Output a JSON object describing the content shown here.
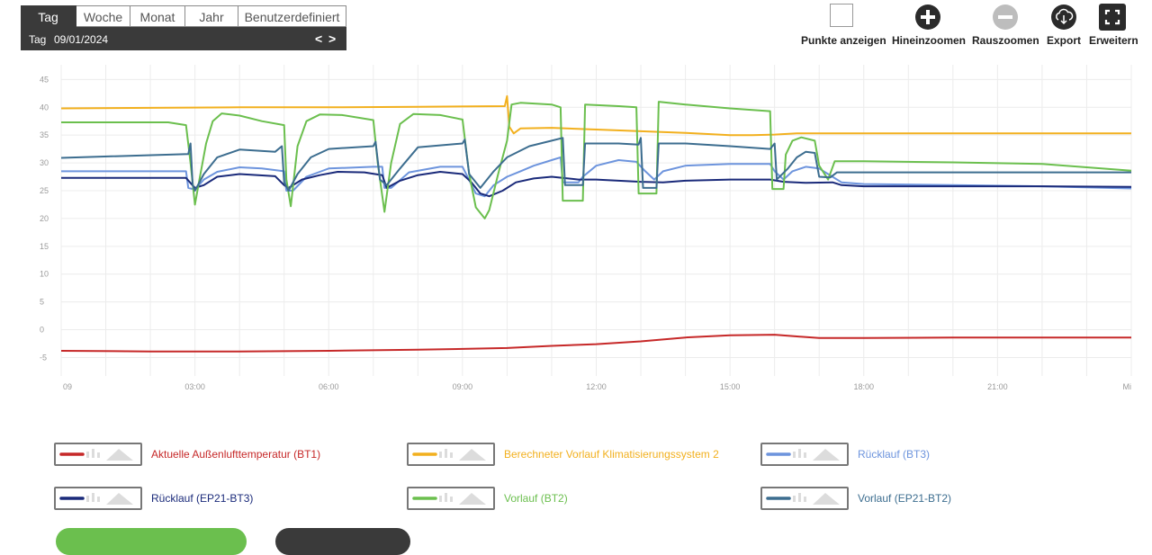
{
  "period_tabs": [
    "Tag",
    "Woche",
    "Monat",
    "Jahr",
    "Benutzerdefiniert"
  ],
  "active_tab": "Tag",
  "date_prefix": "Tag",
  "date_value": "09/01/2024",
  "nav": {
    "prev": "<",
    "next": ">"
  },
  "toolbar": {
    "show_points": "Punkte anzeigen",
    "zoom_in": "Hineinzoomen",
    "zoom_out": "Rauszoomen",
    "export": "Export",
    "expand": "Erweitern"
  },
  "colors": {
    "bt1": "#c62828",
    "calc": "#f2b01e",
    "bt3": "#6d94dd",
    "ep21bt3": "#1a2a7a",
    "bt2": "#6bbf4e",
    "ep21bt2": "#3c6d8f",
    "grid": "#ececec"
  },
  "chart_data": {
    "type": "line",
    "ylim": [
      -8,
      47
    ],
    "y_ticks": [
      45,
      40,
      35,
      30,
      25,
      20,
      15,
      10,
      5,
      0,
      -5
    ],
    "x_range": [
      0,
      24
    ],
    "x_ticks": [
      {
        "h": 0,
        "label": "09"
      },
      {
        "h": 3,
        "label": "03:00"
      },
      {
        "h": 6,
        "label": "06:00"
      },
      {
        "h": 9,
        "label": "09:00"
      },
      {
        "h": 12,
        "label": "12:00"
      },
      {
        "h": 15,
        "label": "15:00"
      },
      {
        "h": 18,
        "label": "18:00"
      },
      {
        "h": 21,
        "label": "21:00"
      },
      {
        "h": 24,
        "label": "Mi"
      }
    ],
    "series": [
      {
        "key": "bt1",
        "name": "Aktuelle Außenlufttemperatur (BT1)",
        "points": [
          [
            0,
            -3.8
          ],
          [
            2,
            -3.9
          ],
          [
            4,
            -3.9
          ],
          [
            6,
            -3.8
          ],
          [
            8,
            -3.6
          ],
          [
            10,
            -3.3
          ],
          [
            11,
            -2.9
          ],
          [
            12,
            -2.6
          ],
          [
            13,
            -2.1
          ],
          [
            14,
            -1.4
          ],
          [
            15,
            -1.0
          ],
          [
            16,
            -0.9
          ],
          [
            16.5,
            -1.2
          ],
          [
            17,
            -1.5
          ],
          [
            18,
            -1.5
          ],
          [
            20,
            -1.4
          ],
          [
            22,
            -1.4
          ],
          [
            24,
            -1.4
          ]
        ]
      },
      {
        "key": "calc",
        "name": "Berechneter Vorlauf Klimatisierungssystem 2",
        "points": [
          [
            0,
            39.8
          ],
          [
            2,
            39.9
          ],
          [
            4,
            40.0
          ],
          [
            6,
            40.0
          ],
          [
            8,
            40.1
          ],
          [
            9.95,
            40.2
          ],
          [
            10,
            42
          ],
          [
            10.05,
            36.5
          ],
          [
            10.15,
            35.3
          ],
          [
            10.3,
            36.2
          ],
          [
            11,
            36.3
          ],
          [
            12,
            36.0
          ],
          [
            13,
            35.7
          ],
          [
            14,
            35.4
          ],
          [
            15,
            35.0
          ],
          [
            15.5,
            35.0
          ],
          [
            16,
            35.1
          ],
          [
            16.5,
            35.3
          ],
          [
            18,
            35.3
          ],
          [
            20,
            35.3
          ],
          [
            22,
            35.3
          ],
          [
            24,
            35.3
          ]
        ]
      },
      {
        "key": "bt3",
        "name": "Rücklauf (BT3)",
        "points": [
          [
            0,
            28.5
          ],
          [
            2.8,
            28.5
          ],
          [
            2.85,
            25.5
          ],
          [
            3.0,
            25.2
          ],
          [
            3.2,
            27.0
          ],
          [
            3.5,
            28.4
          ],
          [
            4,
            29.2
          ],
          [
            4.5,
            29.0
          ],
          [
            5.0,
            28.5
          ],
          [
            5.05,
            25.0
          ],
          [
            5.2,
            25.0
          ],
          [
            5.5,
            27.5
          ],
          [
            5.8,
            28.4
          ],
          [
            6,
            29.0
          ],
          [
            7,
            29.3
          ],
          [
            7.2,
            29.3
          ],
          [
            7.25,
            25.5
          ],
          [
            7.4,
            25.5
          ],
          [
            7.8,
            28.3
          ],
          [
            8.5,
            29.3
          ],
          [
            9.0,
            29.3
          ],
          [
            9.3,
            24.5
          ],
          [
            9.5,
            24.0
          ],
          [
            9.7,
            26.0
          ],
          [
            10,
            27.5
          ],
          [
            10.3,
            28.5
          ],
          [
            10.6,
            29.5
          ],
          [
            11,
            30.5
          ],
          [
            11.2,
            31.0
          ],
          [
            11.25,
            26.5
          ],
          [
            11.6,
            26.5
          ],
          [
            11.7,
            27.5
          ],
          [
            12,
            29.5
          ],
          [
            12.5,
            30.5
          ],
          [
            12.9,
            30.2
          ],
          [
            13.1,
            28.5
          ],
          [
            13.3,
            27.0
          ],
          [
            13.5,
            28.5
          ],
          [
            14,
            29.5
          ],
          [
            15,
            29.8
          ],
          [
            15.9,
            29.8
          ],
          [
            16.0,
            28.5
          ],
          [
            16.2,
            27.0
          ],
          [
            16.4,
            28.5
          ],
          [
            16.7,
            29.3
          ],
          [
            17,
            29.0
          ],
          [
            17.2,
            28.0
          ],
          [
            17.5,
            26.5
          ],
          [
            18,
            26.2
          ],
          [
            20,
            26.0
          ],
          [
            22,
            25.8
          ],
          [
            24,
            25.4
          ]
        ]
      },
      {
        "key": "ep21bt3",
        "name": "Rücklauf (EP21-BT3)",
        "points": [
          [
            0,
            27.3
          ],
          [
            2.8,
            27.3
          ],
          [
            3.0,
            25.5
          ],
          [
            3.2,
            26.0
          ],
          [
            3.5,
            27.5
          ],
          [
            4,
            28.0
          ],
          [
            4.8,
            27.6
          ],
          [
            5.0,
            26.0
          ],
          [
            5.1,
            25.5
          ],
          [
            5.4,
            27.0
          ],
          [
            5.8,
            27.8
          ],
          [
            6.2,
            28.4
          ],
          [
            6.8,
            28.3
          ],
          [
            7.2,
            27.8
          ],
          [
            7.3,
            25.5
          ],
          [
            7.6,
            26.8
          ],
          [
            8,
            27.8
          ],
          [
            8.5,
            28.4
          ],
          [
            9.0,
            28.0
          ],
          [
            9.2,
            26.5
          ],
          [
            9.4,
            24.5
          ],
          [
            9.6,
            24.0
          ],
          [
            9.9,
            25.0
          ],
          [
            10.2,
            26.5
          ],
          [
            10.6,
            27.2
          ],
          [
            11,
            27.5
          ],
          [
            11.6,
            27.0
          ],
          [
            12,
            27.0
          ],
          [
            12.5,
            26.8
          ],
          [
            13,
            26.6
          ],
          [
            13.5,
            26.5
          ],
          [
            14,
            26.8
          ],
          [
            15,
            27.0
          ],
          [
            15.9,
            27.0
          ],
          [
            16.2,
            26.6
          ],
          [
            16.7,
            26.4
          ],
          [
            17.3,
            26.5
          ],
          [
            17.5,
            26.0
          ],
          [
            18,
            25.8
          ],
          [
            20,
            25.8
          ],
          [
            22,
            25.8
          ],
          [
            24,
            25.7
          ]
        ]
      },
      {
        "key": "bt2",
        "name": "Vorlauf (BT2)",
        "points": [
          [
            0,
            37.3
          ],
          [
            2.4,
            37.3
          ],
          [
            2.8,
            36.8
          ],
          [
            2.9,
            30.0
          ],
          [
            3.0,
            22.5
          ],
          [
            3.1,
            27.0
          ],
          [
            3.25,
            33.5
          ],
          [
            3.4,
            37.5
          ],
          [
            3.6,
            38.9
          ],
          [
            4,
            38.5
          ],
          [
            4.5,
            37.5
          ],
          [
            5.0,
            36.8
          ],
          [
            5.05,
            27.0
          ],
          [
            5.15,
            22.2
          ],
          [
            5.3,
            33.0
          ],
          [
            5.5,
            37.5
          ],
          [
            5.8,
            38.7
          ],
          [
            6.3,
            38.6
          ],
          [
            7.0,
            37.7
          ],
          [
            7.1,
            30.0
          ],
          [
            7.25,
            21.2
          ],
          [
            7.4,
            30.0
          ],
          [
            7.6,
            37.0
          ],
          [
            7.9,
            38.8
          ],
          [
            8.5,
            38.6
          ],
          [
            9.0,
            37.8
          ],
          [
            9.15,
            28.0
          ],
          [
            9.3,
            22.0
          ],
          [
            9.5,
            20.0
          ],
          [
            9.6,
            21.5
          ],
          [
            9.8,
            28.0
          ],
          [
            10.0,
            34.0
          ],
          [
            10.1,
            40.5
          ],
          [
            10.3,
            40.8
          ],
          [
            11,
            40.5
          ],
          [
            11.2,
            40.0
          ],
          [
            11.25,
            23.2
          ],
          [
            11.7,
            23.2
          ],
          [
            11.75,
            40.5
          ],
          [
            12.5,
            40.2
          ],
          [
            12.9,
            40.0
          ],
          [
            12.95,
            24.5
          ],
          [
            13.35,
            24.5
          ],
          [
            13.4,
            41.0
          ],
          [
            14,
            40.5
          ],
          [
            15,
            39.8
          ],
          [
            15.9,
            39.3
          ],
          [
            15.95,
            25.3
          ],
          [
            16.2,
            25.3
          ],
          [
            16.25,
            31.5
          ],
          [
            16.4,
            34.0
          ],
          [
            16.6,
            34.6
          ],
          [
            16.9,
            34.0
          ],
          [
            17.0,
            29.5
          ],
          [
            17.2,
            27.0
          ],
          [
            17.35,
            30.3
          ],
          [
            18,
            30.3
          ],
          [
            20,
            30.1
          ],
          [
            22,
            29.8
          ],
          [
            24,
            28.6
          ]
        ]
      },
      {
        "key": "ep21bt2",
        "name": "Vorlauf (EP21-BT2)",
        "points": [
          [
            0,
            30.9
          ],
          [
            2.85,
            31.6
          ],
          [
            2.9,
            33.5
          ],
          [
            2.95,
            26.0
          ],
          [
            3.0,
            25.0
          ],
          [
            3.2,
            28.0
          ],
          [
            3.5,
            31.0
          ],
          [
            4,
            32.4
          ],
          [
            4.8,
            32.0
          ],
          [
            4.95,
            33.0
          ],
          [
            5.0,
            26.5
          ],
          [
            5.1,
            25.0
          ],
          [
            5.3,
            28.0
          ],
          [
            5.6,
            31.0
          ],
          [
            6,
            32.5
          ],
          [
            7,
            33.0
          ],
          [
            7.05,
            33.8
          ],
          [
            7.15,
            27.0
          ],
          [
            7.3,
            26.0
          ],
          [
            7.6,
            29.0
          ],
          [
            8,
            32.8
          ],
          [
            9.0,
            33.5
          ],
          [
            9.05,
            34.2
          ],
          [
            9.15,
            28.0
          ],
          [
            9.4,
            25.5
          ],
          [
            9.7,
            28.5
          ],
          [
            10,
            31.0
          ],
          [
            10.5,
            33.0
          ],
          [
            11,
            34.0
          ],
          [
            11.25,
            34.5
          ],
          [
            11.3,
            26.0
          ],
          [
            11.7,
            26.0
          ],
          [
            11.75,
            33.5
          ],
          [
            12.5,
            33.5
          ],
          [
            12.95,
            33.3
          ],
          [
            13,
            34.5
          ],
          [
            13.05,
            25.5
          ],
          [
            13.35,
            25.5
          ],
          [
            13.4,
            33.5
          ],
          [
            14,
            33.5
          ],
          [
            15,
            33.0
          ],
          [
            15.9,
            32.5
          ],
          [
            16.0,
            33.5
          ],
          [
            16.05,
            27.0
          ],
          [
            16.3,
            29.0
          ],
          [
            16.5,
            31.0
          ],
          [
            16.7,
            32.0
          ],
          [
            16.9,
            31.8
          ],
          [
            17.0,
            27.5
          ],
          [
            17.25,
            27.4
          ],
          [
            17.4,
            28.3
          ],
          [
            18,
            28.3
          ],
          [
            20,
            28.3
          ],
          [
            22,
            28.3
          ],
          [
            24,
            28.3
          ]
        ]
      }
    ]
  },
  "legend": [
    {
      "key": "bt1",
      "label": "Aktuelle Außenlufttemperatur (BT1)"
    },
    {
      "key": "calc",
      "label": "Berechneter Vorlauf Klimatisierungssystem 2"
    },
    {
      "key": "bt3",
      "label": "Rücklauf (BT3)"
    },
    {
      "key": "ep21bt3",
      "label": "Rücklauf (EP21-BT3)"
    },
    {
      "key": "bt2",
      "label": "Vorlauf (BT2)"
    },
    {
      "key": "ep21bt2",
      "label": "Vorlauf (EP21-BT2)"
    }
  ]
}
